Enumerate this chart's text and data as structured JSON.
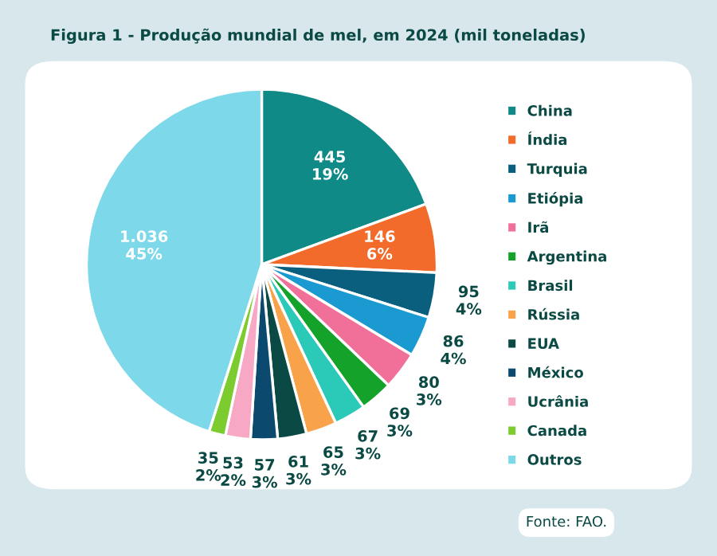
{
  "chart_data": {
    "type": "pie",
    "title": "Figura 1 - Produção mundial de mel, em 2024 (mil toneladas)",
    "categories": [
      "China",
      "Índia",
      "Turquia",
      "Etiópia",
      "Irã",
      "Argentina",
      "Brasil",
      "Rússia",
      "EUA",
      "México",
      "Ucrânia",
      "Canada",
      "Outros"
    ],
    "values": [
      445,
      146,
      95,
      86,
      80,
      69,
      67,
      65,
      61,
      57,
      53,
      35,
      1036
    ],
    "value_labels": [
      "445\n19%",
      "146\n6%",
      "95\n4%",
      "86\n4%",
      "80\n3%",
      "69\n3%",
      "67\n3%",
      "65\n3%",
      "61\n3%",
      "57\n3%",
      "53\n2%",
      "35\n2%",
      "1.036\n45%"
    ],
    "colors": [
      "#0f8a87",
      "#f26b2a",
      "#0a5f7f",
      "#1a9ad0",
      "#f0709a",
      "#14a22a",
      "#2ac9b8",
      "#f8a24a",
      "#0b4a44",
      "#0b4a6e",
      "#f6a8c4",
      "#7dcc2f",
      "#7dd8ea"
    ],
    "legend": "right",
    "annotations": [
      "Fonte: FAO."
    ]
  }
}
